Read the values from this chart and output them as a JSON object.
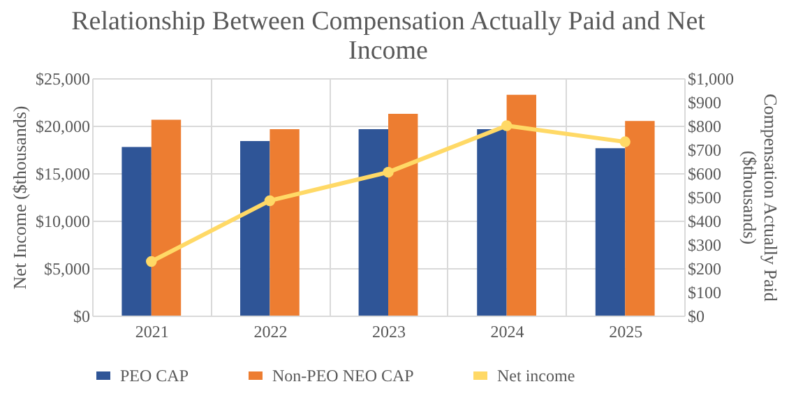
{
  "chart_data": {
    "type": "bar",
    "title": "Relationship Between Compensation Actually Paid and Net Income",
    "ylabel": "Net Income ($thousands)",
    "y2label": "Compensation Actually Paid ($thousands)",
    "categories": [
      "2021",
      "2022",
      "2023",
      "2024",
      "2025"
    ],
    "series": [
      {
        "name": "PEO CAP",
        "axis": "y2",
        "color": "#2f5597",
        "values": [
          710,
          735,
          785,
          785,
          705
        ]
      },
      {
        "name": "Non-PEO NEO CAP",
        "axis": "y2",
        "color": "#ed7d31",
        "values": [
          825,
          785,
          850,
          930,
          820
        ]
      },
      {
        "name": "Net income",
        "type": "line",
        "color": "#ffd966",
        "marker": "circle",
        "values": [
          5700,
          12100,
          15100,
          20000,
          18300
        ]
      }
    ],
    "ylim": [
      0,
      25000
    ],
    "yticks": [
      {
        "value": 0,
        "label": "$0"
      },
      {
        "value": 5000,
        "label": "$5,000"
      },
      {
        "value": 10000,
        "label": "$10,000"
      },
      {
        "value": 15000,
        "label": "$15,000"
      },
      {
        "value": 20000,
        "label": "$20,000"
      },
      {
        "value": 25000,
        "label": "$25,000"
      }
    ],
    "y2lim": [
      0,
      1000
    ],
    "y2ticks": [
      {
        "value": 0,
        "label": "$0"
      },
      {
        "value": 100,
        "label": "$100"
      },
      {
        "value": 200,
        "label": "$200"
      },
      {
        "value": 300,
        "label": "$300"
      },
      {
        "value": 400,
        "label": "$400"
      },
      {
        "value": 500,
        "label": "$500"
      },
      {
        "value": 600,
        "label": "$600"
      },
      {
        "value": 700,
        "label": "$700"
      },
      {
        "value": 800,
        "label": "$800"
      },
      {
        "value": 900,
        "label": "$900"
      },
      {
        "value": 1000,
        "label": "$1,000"
      }
    ],
    "grid": true,
    "legend": "bottom"
  }
}
